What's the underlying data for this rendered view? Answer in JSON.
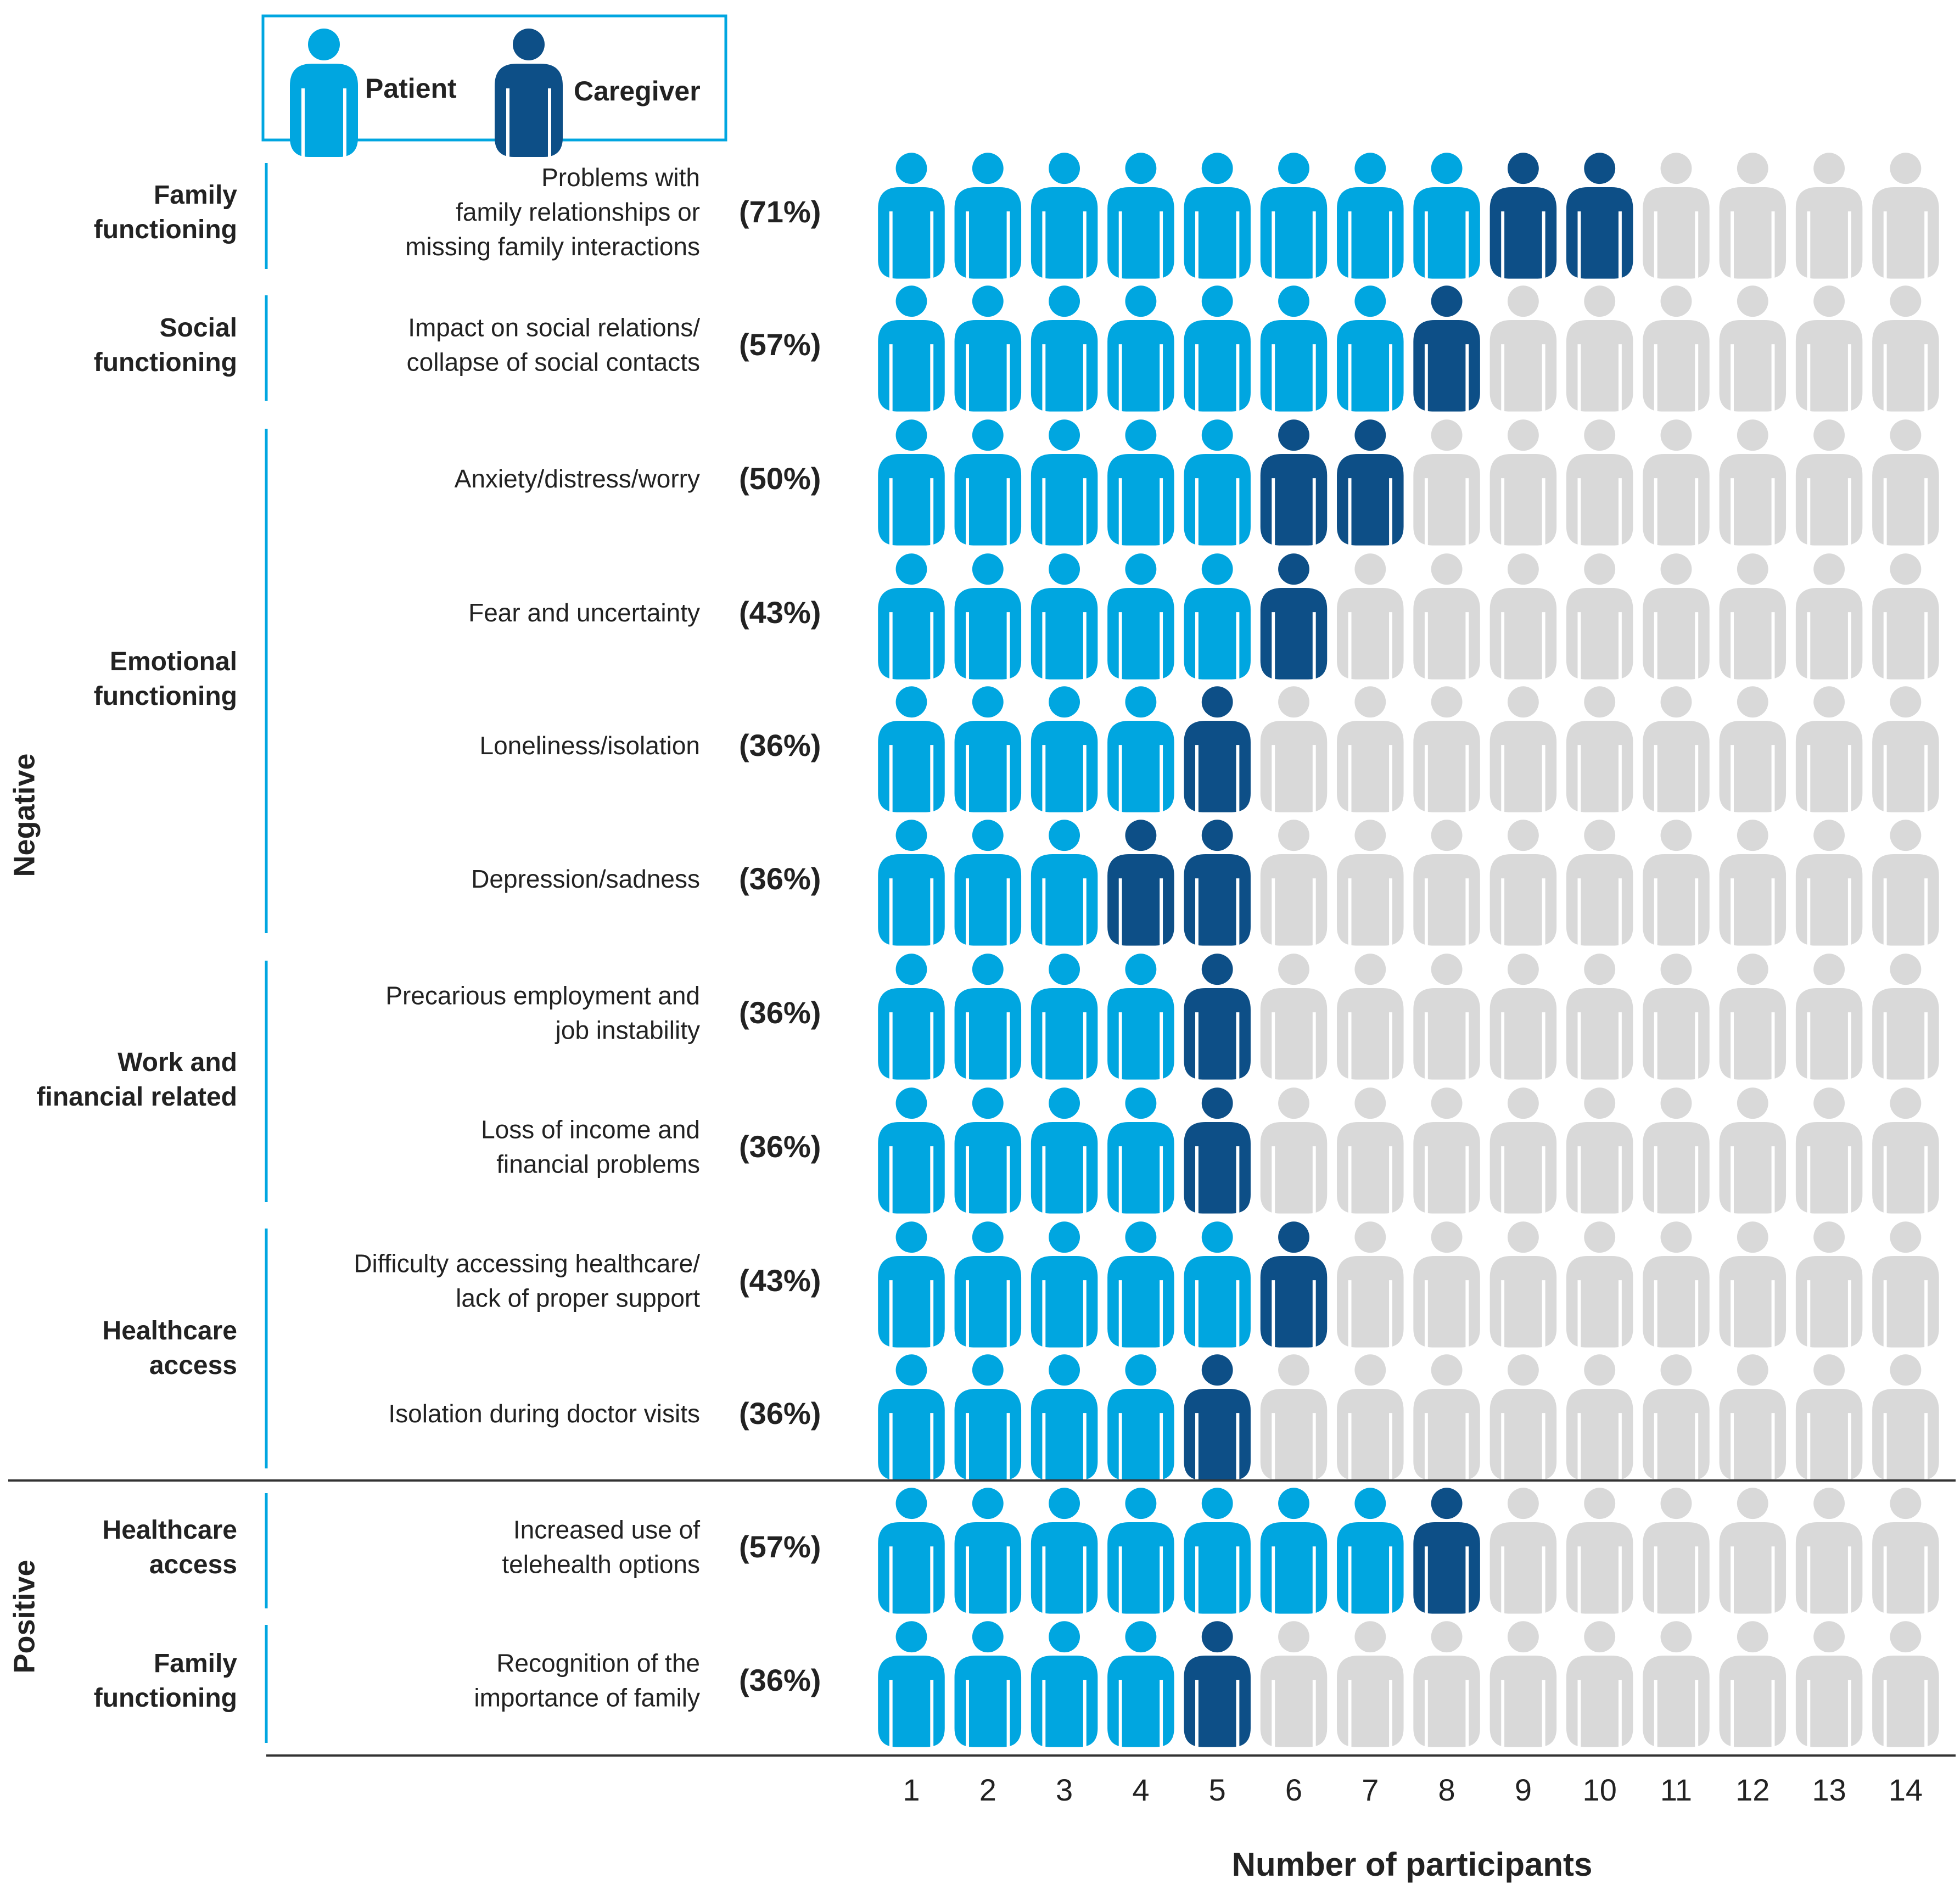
{
  "legend": {
    "items": [
      {
        "label": "Patient",
        "color": "#00a6e0",
        "icon": "person-icon"
      },
      {
        "label": "Caregiver",
        "color": "#0d4f87",
        "icon": "person-icon"
      }
    ]
  },
  "colors": {
    "patient": "#00a6e0",
    "caregiver": "#0d4f87",
    "empty": "#d9d9d9"
  },
  "chart_data": {
    "type": "pictograph",
    "xlabel": "Number of participants",
    "x_ticks": [
      "1",
      "2",
      "3",
      "4",
      "5",
      "6",
      "7",
      "8",
      "9",
      "10",
      "11",
      "12",
      "13",
      "14"
    ],
    "total_participants": 14,
    "groups": [
      {
        "name": "Negative",
        "domains": [
          {
            "name": [
              "Family",
              "functioning"
            ],
            "items": [
              {
                "label": [
                  "Problems with",
                  "family relationships or",
                  "missing family interactions"
                ],
                "percent": "(71%)",
                "patients": 8,
                "caregivers": 2
              }
            ]
          },
          {
            "name": [
              "Social",
              "functioning"
            ],
            "items": [
              {
                "label": [
                  "Impact on social relations/",
                  "collapse of social contacts"
                ],
                "percent": "(57%)",
                "patients": 7,
                "caregivers": 1
              }
            ]
          },
          {
            "name": [
              "Emotional",
              "functioning"
            ],
            "items": [
              {
                "label": [
                  "Anxiety/distress/worry"
                ],
                "percent": "(50%)",
                "patients": 5,
                "caregivers": 2
              },
              {
                "label": [
                  "Fear and uncertainty"
                ],
                "percent": "(43%)",
                "patients": 5,
                "caregivers": 1
              },
              {
                "label": [
                  "Loneliness/isolation"
                ],
                "percent": "(36%)",
                "patients": 4,
                "caregivers": 1
              },
              {
                "label": [
                  "Depression/sadness"
                ],
                "percent": "(36%)",
                "patients": 3,
                "caregivers": 2
              }
            ]
          },
          {
            "name": [
              "Work and",
              "financial related"
            ],
            "items": [
              {
                "label": [
                  "Precarious employment and",
                  "job instability"
                ],
                "percent": "(36%)",
                "patients": 4,
                "caregivers": 1
              },
              {
                "label": [
                  "Loss of income and",
                  "financial problems"
                ],
                "percent": "(36%)",
                "patients": 4,
                "caregivers": 1
              }
            ]
          },
          {
            "name": [
              "Healthcare",
              "access"
            ],
            "items": [
              {
                "label": [
                  "Difficulty accessing healthcare/",
                  "lack of proper support"
                ],
                "percent": "(43%)",
                "patients": 5,
                "caregivers": 1
              },
              {
                "label": [
                  "Isolation during doctor visits"
                ],
                "percent": "(36%)",
                "patients": 4,
                "caregivers": 1
              }
            ]
          }
        ]
      },
      {
        "name": "Positive",
        "domains": [
          {
            "name": [
              "Healthcare",
              "access"
            ],
            "items": [
              {
                "label": [
                  "Increased use of",
                  "telehealth options"
                ],
                "percent": "(57%)",
                "patients": 7,
                "caregivers": 1
              }
            ]
          },
          {
            "name": [
              "Family",
              "functioning"
            ],
            "items": [
              {
                "label": [
                  "Recognition of the",
                  "importance of family"
                ],
                "percent": "(36%)",
                "patients": 4,
                "caregivers": 1
              }
            ]
          }
        ]
      }
    ]
  }
}
